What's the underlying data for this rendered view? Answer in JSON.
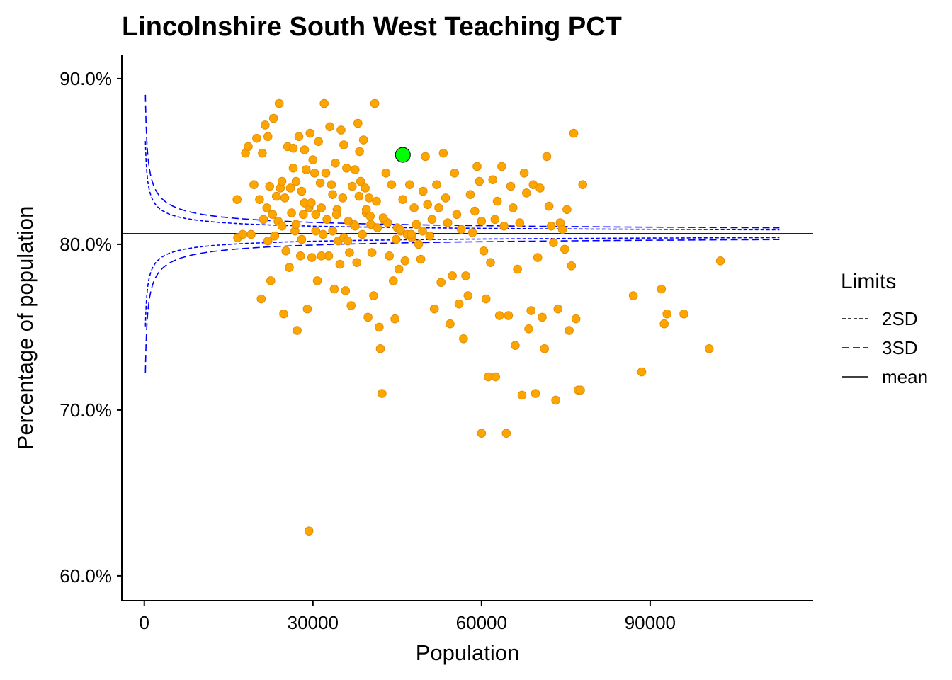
{
  "chart_data": {
    "type": "scatter",
    "title": "Lincolnshire South West Teaching PCT",
    "xlabel": "Population",
    "ylabel": "Percentage of population",
    "xlim": [
      -4000,
      119000
    ],
    "ylim": [
      0.585,
      0.9145
    ],
    "x_ticks": [
      0,
      30000,
      60000,
      90000
    ],
    "x_tick_labels": [
      "0",
      "30000",
      "60000",
      "90000"
    ],
    "y_ticks": [
      0.6,
      0.7,
      0.8,
      0.9
    ],
    "y_tick_labels": [
      "60.0%",
      "70.0%",
      "80.0%",
      "90.0%"
    ],
    "grid": false,
    "mean": 0.8064,
    "sd_unit": 0.3952,
    "limits_x_range": [
      200,
      113000
    ],
    "legend": {
      "title": "Limits",
      "placement": "right",
      "entries": [
        {
          "label": "2SD",
          "linestyle": "dotted-dash"
        },
        {
          "label": "3SD",
          "linestyle": "dashed"
        },
        {
          "label": "mean",
          "linestyle": "solid"
        }
      ]
    },
    "colors": {
      "points": "#FFA500",
      "points_edge": "#E08E0B",
      "highlight": "#00FF00",
      "limits": "#0000FF",
      "mean": "#000000"
    },
    "highlight_point": {
      "x": 46000,
      "y": 0.854
    },
    "points": [
      [
        16500,
        0.827
      ],
      [
        16600,
        0.804
      ],
      [
        17500,
        0.806
      ],
      [
        18000,
        0.855
      ],
      [
        18500,
        0.859
      ],
      [
        19000,
        0.806
      ],
      [
        19500,
        0.836
      ],
      [
        20000,
        0.864
      ],
      [
        20500,
        0.827
      ],
      [
        20800,
        0.767
      ],
      [
        21000,
        0.855
      ],
      [
        21200,
        0.815
      ],
      [
        21500,
        0.872
      ],
      [
        21800,
        0.822
      ],
      [
        22000,
        0.802
      ],
      [
        22300,
        0.835
      ],
      [
        22500,
        0.778
      ],
      [
        22800,
        0.818
      ],
      [
        23000,
        0.876
      ],
      [
        23200,
        0.805
      ],
      [
        23500,
        0.829
      ],
      [
        23800,
        0.814
      ],
      [
        24000,
        0.885
      ],
      [
        24200,
        0.834
      ],
      [
        24500,
        0.811
      ],
      [
        24800,
        0.758
      ],
      [
        25000,
        0.828
      ],
      [
        25200,
        0.796
      ],
      [
        25500,
        0.859
      ],
      [
        25800,
        0.786
      ],
      [
        26000,
        0.834
      ],
      [
        26200,
        0.819
      ],
      [
        26500,
        0.846
      ],
      [
        26800,
        0.808
      ],
      [
        27000,
        0.838
      ],
      [
        27200,
        0.748
      ],
      [
        27500,
        0.865
      ],
      [
        27800,
        0.793
      ],
      [
        28000,
        0.832
      ],
      [
        28300,
        0.818
      ],
      [
        28500,
        0.857
      ],
      [
        28800,
        0.845
      ],
      [
        29000,
        0.761
      ],
      [
        29300,
        0.822
      ],
      [
        29500,
        0.867
      ],
      [
        29800,
        0.792
      ],
      [
        30000,
        0.851
      ],
      [
        30300,
        0.843
      ],
      [
        30500,
        0.808
      ],
      [
        30800,
        0.778
      ],
      [
        31000,
        0.862
      ],
      [
        31300,
        0.837
      ],
      [
        31500,
        0.822
      ],
      [
        31800,
        0.806
      ],
      [
        32000,
        0.885
      ],
      [
        32300,
        0.843
      ],
      [
        32500,
        0.815
      ],
      [
        32800,
        0.793
      ],
      [
        33000,
        0.871
      ],
      [
        33300,
        0.836
      ],
      [
        33500,
        0.808
      ],
      [
        33800,
        0.773
      ],
      [
        34000,
        0.849
      ],
      [
        34300,
        0.821
      ],
      [
        34500,
        0.802
      ],
      [
        34800,
        0.788
      ],
      [
        35000,
        0.869
      ],
      [
        35300,
        0.828
      ],
      [
        35500,
        0.804
      ],
      [
        35800,
        0.772
      ],
      [
        36000,
        0.846
      ],
      [
        36300,
        0.814
      ],
      [
        36500,
        0.795
      ],
      [
        36800,
        0.763
      ],
      [
        37000,
        0.835
      ],
      [
        37300,
        0.812
      ],
      [
        37500,
        0.811
      ],
      [
        37800,
        0.789
      ],
      [
        38000,
        0.873
      ],
      [
        38300,
        0.856
      ],
      [
        38500,
        0.838
      ],
      [
        38800,
        0.806
      ],
      [
        39000,
        0.863
      ],
      [
        39300,
        0.834
      ],
      [
        39500,
        0.819
      ],
      [
        39800,
        0.756
      ],
      [
        40000,
        0.828
      ],
      [
        40300,
        0.812
      ],
      [
        40500,
        0.795
      ],
      [
        40800,
        0.769
      ],
      [
        41000,
        0.885
      ],
      [
        41300,
        0.826
      ],
      [
        41500,
        0.81
      ],
      [
        41800,
        0.75
      ],
      [
        42000,
        0.737
      ],
      [
        42300,
        0.71
      ],
      [
        42600,
        0.815
      ],
      [
        43000,
        0.843
      ],
      [
        43300,
        0.813
      ],
      [
        43600,
        0.793
      ],
      [
        44000,
        0.836
      ],
      [
        44300,
        0.778
      ],
      [
        44600,
        0.755
      ],
      [
        45000,
        0.81
      ],
      [
        45300,
        0.785
      ],
      [
        45600,
        0.808
      ],
      [
        46000,
        0.827
      ],
      [
        46400,
        0.79
      ],
      [
        46800,
        0.806
      ],
      [
        47200,
        0.836
      ],
      [
        47600,
        0.804
      ],
      [
        48000,
        0.822
      ],
      [
        48400,
        0.812
      ],
      [
        48800,
        0.8
      ],
      [
        49200,
        0.791
      ],
      [
        49600,
        0.832
      ],
      [
        50000,
        0.853
      ],
      [
        50400,
        0.824
      ],
      [
        50800,
        0.805
      ],
      [
        51200,
        0.815
      ],
      [
        51600,
        0.761
      ],
      [
        52000,
        0.836
      ],
      [
        52400,
        0.822
      ],
      [
        52800,
        0.777
      ],
      [
        53200,
        0.855
      ],
      [
        53600,
        0.828
      ],
      [
        54000,
        0.813
      ],
      [
        54400,
        0.752
      ],
      [
        54800,
        0.781
      ],
      [
        55200,
        0.843
      ],
      [
        55600,
        0.818
      ],
      [
        56000,
        0.764
      ],
      [
        56400,
        0.809
      ],
      [
        56800,
        0.743
      ],
      [
        57200,
        0.781
      ],
      [
        57600,
        0.769
      ],
      [
        58000,
        0.83
      ],
      [
        58400,
        0.807
      ],
      [
        58800,
        0.82
      ],
      [
        59200,
        0.847
      ],
      [
        59600,
        0.838
      ],
      [
        60000,
        0.814
      ],
      [
        60400,
        0.796
      ],
      [
        60800,
        0.767
      ],
      [
        61200,
        0.72
      ],
      [
        61600,
        0.789
      ],
      [
        62000,
        0.839
      ],
      [
        62400,
        0.815
      ],
      [
        62800,
        0.826
      ],
      [
        63200,
        0.757
      ],
      [
        63600,
        0.847
      ],
      [
        64000,
        0.811
      ],
      [
        64400,
        0.686
      ],
      [
        64800,
        0.757
      ],
      [
        65200,
        0.835
      ],
      [
        65600,
        0.822
      ],
      [
        66000,
        0.739
      ],
      [
        66400,
        0.785
      ],
      [
        66800,
        0.813
      ],
      [
        67200,
        0.709
      ],
      [
        67600,
        0.843
      ],
      [
        68000,
        0.831
      ],
      [
        68400,
        0.749
      ],
      [
        68800,
        0.76
      ],
      [
        69200,
        0.836
      ],
      [
        69600,
        0.71
      ],
      [
        70000,
        0.792
      ],
      [
        70400,
        0.834
      ],
      [
        70800,
        0.756
      ],
      [
        71200,
        0.737
      ],
      [
        71600,
        0.853
      ],
      [
        72000,
        0.823
      ],
      [
        72400,
        0.811
      ],
      [
        72800,
        0.801
      ],
      [
        73200,
        0.706
      ],
      [
        73600,
        0.761
      ],
      [
        74000,
        0.813
      ],
      [
        74400,
        0.809
      ],
      [
        74800,
        0.797
      ],
      [
        75200,
        0.821
      ],
      [
        75600,
        0.748
      ],
      [
        76000,
        0.787
      ],
      [
        76400,
        0.867
      ],
      [
        76800,
        0.755
      ],
      [
        77200,
        0.712
      ],
      [
        77600,
        0.712
      ],
      [
        78000,
        0.836
      ],
      [
        87000,
        0.769
      ],
      [
        88500,
        0.723
      ],
      [
        92000,
        0.773
      ],
      [
        92500,
        0.752
      ],
      [
        93000,
        0.758
      ],
      [
        96000,
        0.758
      ],
      [
        100500,
        0.737
      ],
      [
        102500,
        0.79
      ],
      [
        29300,
        0.627
      ],
      [
        60000,
        0.686
      ],
      [
        62500,
        0.72
      ],
      [
        45500,
        0.809
      ],
      [
        47500,
        0.806
      ],
      [
        22000,
        0.865
      ],
      [
        24500,
        0.838
      ],
      [
        26500,
        0.858
      ],
      [
        28500,
        0.825
      ],
      [
        30500,
        0.818
      ],
      [
        33500,
        0.83
      ],
      [
        35500,
        0.86
      ],
      [
        37500,
        0.845
      ],
      [
        39500,
        0.821
      ],
      [
        42500,
        0.816
      ],
      [
        27000,
        0.812
      ],
      [
        28000,
        0.803
      ],
      [
        29700,
        0.825
      ],
      [
        31500,
        0.793
      ],
      [
        34200,
        0.818
      ],
      [
        36200,
        0.802
      ],
      [
        38200,
        0.829
      ],
      [
        40200,
        0.817
      ],
      [
        44800,
        0.803
      ],
      [
        49500,
        0.808
      ]
    ]
  }
}
